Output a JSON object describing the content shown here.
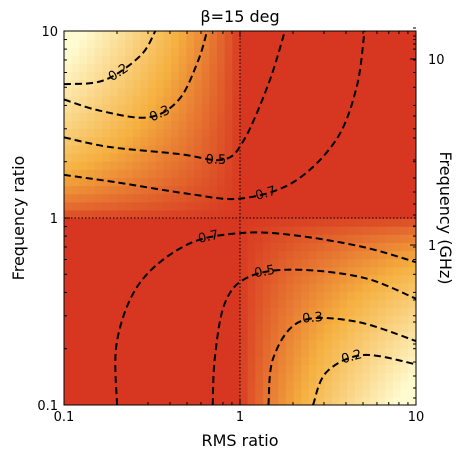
{
  "chart_data": {
    "type": "heatmap",
    "title": "β=15 deg",
    "xlabel": "RMS ratio",
    "ylabel": "Frequency ratio",
    "ylabel_right": "Frequency (GHz)",
    "x_scale": "log",
    "y_scale": "log",
    "xlim": [
      0.1,
      10
    ],
    "ylim": [
      0.1,
      10
    ],
    "x_ticks": [
      {
        "value": 0.1,
        "label": "0.1"
      },
      {
        "value": 1,
        "label": "1"
      },
      {
        "value": 10,
        "label": "10"
      }
    ],
    "y_ticks": [
      {
        "value": 0.1,
        "label": "0.1"
      },
      {
        "value": 1,
        "label": "1"
      },
      {
        "value": 10,
        "label": "10"
      }
    ],
    "right_ticks": [
      {
        "value": 10,
        "label": "10"
      },
      {
        "value": 1,
        "label": "1"
      }
    ],
    "reference_lines": {
      "x": 1,
      "y": 1,
      "style": "dotted"
    },
    "colormap": {
      "low": "#fffbd0",
      "mid": "#f5b040",
      "high": "#d42a1e"
    },
    "contours": [
      {
        "level": 0.2,
        "label": "0.2",
        "quadrant": "upper-left",
        "points": [
          [
            0.1,
            5.2
          ],
          [
            0.15,
            5.3
          ],
          [
            0.2,
            5.9
          ],
          [
            0.28,
            7.6
          ],
          [
            0.33,
            10
          ]
        ]
      },
      {
        "level": 0.3,
        "label": "0.3",
        "quadrant": "upper-left",
        "points": [
          [
            0.1,
            4.3
          ],
          [
            0.16,
            3.75
          ],
          [
            0.3,
            3.45
          ],
          [
            0.45,
            4.3
          ],
          [
            0.58,
            7.0
          ],
          [
            0.65,
            10
          ]
        ]
      },
      {
        "level": 0.5,
        "label": "0.5",
        "quadrant": "upper-left",
        "points": [
          [
            0.1,
            2.7
          ],
          [
            0.18,
            2.4
          ],
          [
            0.45,
            2.2
          ],
          [
            0.8,
            2.05
          ],
          [
            1.05,
            2.6
          ],
          [
            1.45,
            5.2
          ],
          [
            1.8,
            10
          ]
        ]
      },
      {
        "level": 0.7,
        "label": "0.7",
        "quadrant": "upper-left",
        "points": [
          [
            0.1,
            1.7
          ],
          [
            0.2,
            1.55
          ],
          [
            0.5,
            1.35
          ],
          [
            1,
            1.27
          ],
          [
            2,
            1.55
          ],
          [
            3.5,
            2.6
          ],
          [
            4.6,
            5.0
          ],
          [
            5.1,
            10
          ]
        ]
      },
      {
        "level": 0.7,
        "label": "0.7",
        "quadrant": "lower-right",
        "points": [
          [
            0.2,
            0.1
          ],
          [
            0.2,
            0.22
          ],
          [
            0.27,
            0.45
          ],
          [
            0.5,
            0.72
          ],
          [
            1,
            0.83
          ],
          [
            2,
            0.81
          ],
          [
            5,
            0.7
          ],
          [
            10,
            0.58
          ]
        ]
      },
      {
        "level": 0.5,
        "label": "0.5",
        "quadrant": "lower-right",
        "points": [
          [
            0.7,
            0.1
          ],
          [
            0.72,
            0.18
          ],
          [
            0.82,
            0.35
          ],
          [
            1.1,
            0.48
          ],
          [
            2,
            0.53
          ],
          [
            5,
            0.48
          ],
          [
            10,
            0.37
          ]
        ]
      },
      {
        "level": 0.3,
        "label": "0.3",
        "quadrant": "lower-right",
        "points": [
          [
            1.45,
            0.1
          ],
          [
            1.55,
            0.18
          ],
          [
            2.2,
            0.28
          ],
          [
            4.5,
            0.28
          ],
          [
            10,
            0.22
          ]
        ]
      },
      {
        "level": 0.2,
        "label": "0.2",
        "quadrant": "lower-right",
        "points": [
          [
            2.6,
            0.1
          ],
          [
            3.1,
            0.15
          ],
          [
            5,
            0.185
          ],
          [
            10,
            0.165
          ]
        ]
      }
    ],
    "grid": false,
    "legend": "none"
  }
}
